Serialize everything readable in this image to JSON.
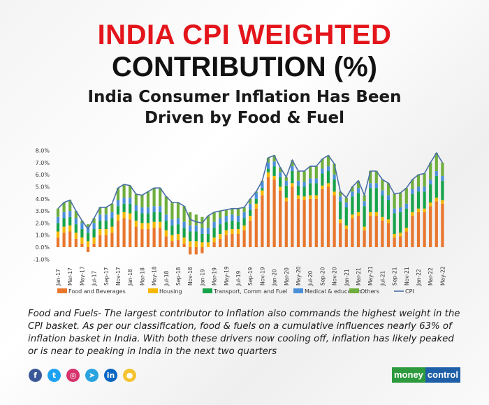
{
  "header": {
    "title_line1": "INDIA CPI WEIGHTED",
    "title_line2": "CONTRIBUTION (%)",
    "subtitle_line1": "India Consumer Inflation Has Been",
    "subtitle_line2": "Driven by Food & Fuel"
  },
  "chart_data": {
    "type": "bar",
    "stacked": true,
    "ylim": [
      -1,
      8
    ],
    "yticks": [
      "8.0%",
      "7.0%",
      "6.0%",
      "5.0%",
      "4.0%",
      "3.0%",
      "2.0%",
      "1.0%",
      "0.0%",
      "-1.0%"
    ],
    "categories": [
      "Jan-17",
      "Feb-17",
      "Mar-17",
      "Apr-17",
      "May-17",
      "Jun-17",
      "Jul-17",
      "Aug-17",
      "Sep-17",
      "Oct-17",
      "Nov-17",
      "Dec-17",
      "Jan-18",
      "Feb-18",
      "Mar-18",
      "Apr-18",
      "May-18",
      "Jun-18",
      "Jul-18",
      "Aug-18",
      "Sep-18",
      "Oct-18",
      "Nov-18",
      "Dec-18",
      "Jan-19",
      "Feb-19",
      "Mar-19",
      "Apr-19",
      "May-19",
      "Jun-19",
      "Jul-19",
      "Aug-19",
      "Sep-19",
      "Oct-19",
      "Nov-19",
      "Dec-19",
      "Jan-20",
      "Feb-20",
      "Mar-20",
      "Apr-20",
      "May-20",
      "Jun-20",
      "Jul-20",
      "Aug-20",
      "Sep-20",
      "Oct-20",
      "Nov-20",
      "Dec-20",
      "Jan-21",
      "Feb-21",
      "Mar-21",
      "Apr-21",
      "May-21",
      "Jun-21",
      "Jul-21",
      "Aug-21",
      "Sep-21",
      "Oct-21",
      "Nov-21",
      "Dec-21",
      "Jan-22",
      "Feb-22",
      "Mar-22",
      "Apr-22",
      "May-22"
    ],
    "series": [
      {
        "name": "Food and Beverages",
        "color": "#e8762d",
        "values": [
          0.8,
          1.2,
          1.3,
          0.7,
          0.3,
          -0.4,
          0.3,
          1.0,
          1.0,
          1.2,
          2.2,
          2.4,
          2.3,
          1.7,
          1.5,
          1.5,
          1.6,
          1.6,
          0.9,
          0.5,
          0.6,
          0.3,
          -0.6,
          -0.6,
          -0.5,
          0.0,
          0.4,
          0.7,
          1.0,
          1.1,
          1.1,
          1.4,
          2.2,
          3.2,
          4.3,
          5.8,
          5.6,
          4.7,
          3.8,
          5.0,
          4.0,
          3.9,
          4.0,
          4.0,
          4.8,
          5.0,
          4.3,
          2.0,
          1.5,
          2.4,
          2.6,
          1.4,
          2.6,
          2.6,
          2.2,
          2.0,
          0.8,
          0.9,
          1.3,
          2.6,
          2.9,
          2.9,
          3.4,
          3.8,
          3.6
        ]
      },
      {
        "name": "Housing",
        "color": "#f5b800",
        "values": [
          0.5,
          0.5,
          0.5,
          0.5,
          0.5,
          0.5,
          0.5,
          0.5,
          0.5,
          0.5,
          0.5,
          0.5,
          0.5,
          0.5,
          0.5,
          0.5,
          0.5,
          0.5,
          0.5,
          0.5,
          0.5,
          0.5,
          0.5,
          0.5,
          0.4,
          0.4,
          0.4,
          0.4,
          0.4,
          0.4,
          0.4,
          0.4,
          0.4,
          0.4,
          0.4,
          0.4,
          0.3,
          0.3,
          0.3,
          0.3,
          0.3,
          0.3,
          0.3,
          0.3,
          0.3,
          0.3,
          0.3,
          0.3,
          0.3,
          0.3,
          0.3,
          0.3,
          0.3,
          0.3,
          0.3,
          0.3,
          0.3,
          0.3,
          0.3,
          0.3,
          0.3,
          0.3,
          0.3,
          0.3,
          0.3
        ]
      },
      {
        "name": "Transport, Comm and  Fuel",
        "color": "#16a34a",
        "values": [
          0.7,
          0.7,
          0.7,
          0.7,
          0.7,
          0.7,
          0.7,
          0.7,
          0.7,
          0.7,
          0.7,
          0.7,
          0.8,
          0.8,
          0.8,
          0.8,
          0.8,
          0.8,
          0.8,
          0.8,
          0.8,
          0.8,
          0.8,
          0.8,
          0.7,
          0.7,
          0.8,
          0.8,
          0.7,
          0.7,
          0.6,
          0.6,
          0.5,
          0.4,
          0.2,
          0.3,
          0.8,
          0.8,
          1.0,
          1.0,
          0.8,
          0.8,
          1.0,
          1.0,
          1.0,
          1.0,
          1.0,
          1.5,
          1.5,
          1.5,
          1.6,
          1.7,
          2.0,
          2.0,
          1.8,
          1.6,
          1.7,
          1.7,
          1.6,
          1.5,
          1.4,
          1.4,
          1.5,
          1.8,
          1.6
        ]
      },
      {
        "name": "Medical & education",
        "color": "#4a90d9",
        "values": [
          0.5,
          0.5,
          0.5,
          0.5,
          0.5,
          0.5,
          0.5,
          0.5,
          0.5,
          0.5,
          0.5,
          0.5,
          0.5,
          0.5,
          0.5,
          0.5,
          0.5,
          0.5,
          0.5,
          0.5,
          0.5,
          0.5,
          0.5,
          0.5,
          0.5,
          0.5,
          0.5,
          0.5,
          0.5,
          0.5,
          0.5,
          0.5,
          0.5,
          0.5,
          0.5,
          0.5,
          0.4,
          0.4,
          0.4,
          0.4,
          0.4,
          0.4,
          0.4,
          0.4,
          0.4,
          0.4,
          0.4,
          0.4,
          0.4,
          0.4,
          0.4,
          0.4,
          0.4,
          0.4,
          0.4,
          0.4,
          0.4,
          0.4,
          0.4,
          0.4,
          0.4,
          0.4,
          0.4,
          0.4,
          0.4
        ]
      },
      {
        "name": "Others",
        "color": "#6fae3d",
        "values": [
          0.7,
          0.8,
          0.9,
          0.6,
          0.2,
          0.2,
          0.4,
          0.6,
          0.6,
          0.7,
          1.0,
          1.1,
          1.0,
          0.9,
          1.0,
          1.3,
          1.5,
          1.5,
          1.5,
          1.4,
          1.3,
          1.3,
          1.1,
          0.9,
          0.9,
          1.0,
          0.8,
          0.6,
          0.5,
          0.5,
          0.6,
          0.4,
          0.4,
          0.1,
          0.1,
          0.4,
          0.5,
          0.4,
          0.3,
          0.5,
          0.8,
          0.9,
          1.0,
          1.0,
          0.8,
          0.9,
          0.9,
          0.4,
          0.4,
          0.4,
          0.6,
          0.5,
          1.0,
          1.0,
          0.9,
          1.0,
          1.2,
          1.2,
          1.3,
          0.8,
          1.0,
          1.1,
          1.4,
          1.5,
          1.1
        ]
      }
    ],
    "line": {
      "name": "CPI",
      "color": "#4a6fa5",
      "values": [
        3.2,
        3.7,
        3.9,
        3.0,
        2.2,
        1.5,
        2.4,
        3.3,
        3.3,
        3.6,
        4.9,
        5.2,
        5.1,
        4.4,
        4.3,
        4.6,
        4.9,
        4.9,
        4.2,
        3.7,
        3.7,
        3.4,
        2.3,
        2.1,
        2.0,
        2.6,
        2.9,
        3.0,
        3.1,
        3.2,
        3.2,
        3.3,
        4.0,
        4.6,
        5.5,
        7.4,
        7.6,
        6.6,
        5.8,
        7.2,
        6.3,
        6.3,
        6.7,
        6.7,
        7.3,
        7.6,
        6.9,
        4.6,
        4.1,
        5.0,
        5.5,
        4.3,
        6.3,
        6.3,
        5.6,
        5.3,
        4.4,
        4.5,
        4.9,
        5.6,
        6.0,
        6.1,
        7.0,
        7.8,
        7.0
      ]
    },
    "legend": "bottom"
  },
  "body_text": "Food and Fuels- The largest contributor to Inflation also commands the highest weight in the CPI basket. As per our classification, food & fuels on a cumulative influences nearly 63% of inflation basket in India. With both these drivers now cooling off, inflation has likely peaked or is near to peaking in India in the next two quarters",
  "social": [
    {
      "name": "facebook",
      "glyph": "f",
      "color": "#3b5998"
    },
    {
      "name": "twitter",
      "glyph": "t",
      "color": "#1da1f2"
    },
    {
      "name": "instagram",
      "glyph": "◎",
      "color": "#d6336c"
    },
    {
      "name": "telegram",
      "glyph": "➤",
      "color": "#2aa3de"
    },
    {
      "name": "linkedin",
      "glyph": "in",
      "color": "#0a66c2"
    },
    {
      "name": "koo",
      "glyph": "●",
      "color": "#f4c430"
    }
  ],
  "brand": {
    "part1": "money",
    "part2": "control",
    "color1": "#2e9a3e",
    "color2": "#1f5fa8"
  }
}
